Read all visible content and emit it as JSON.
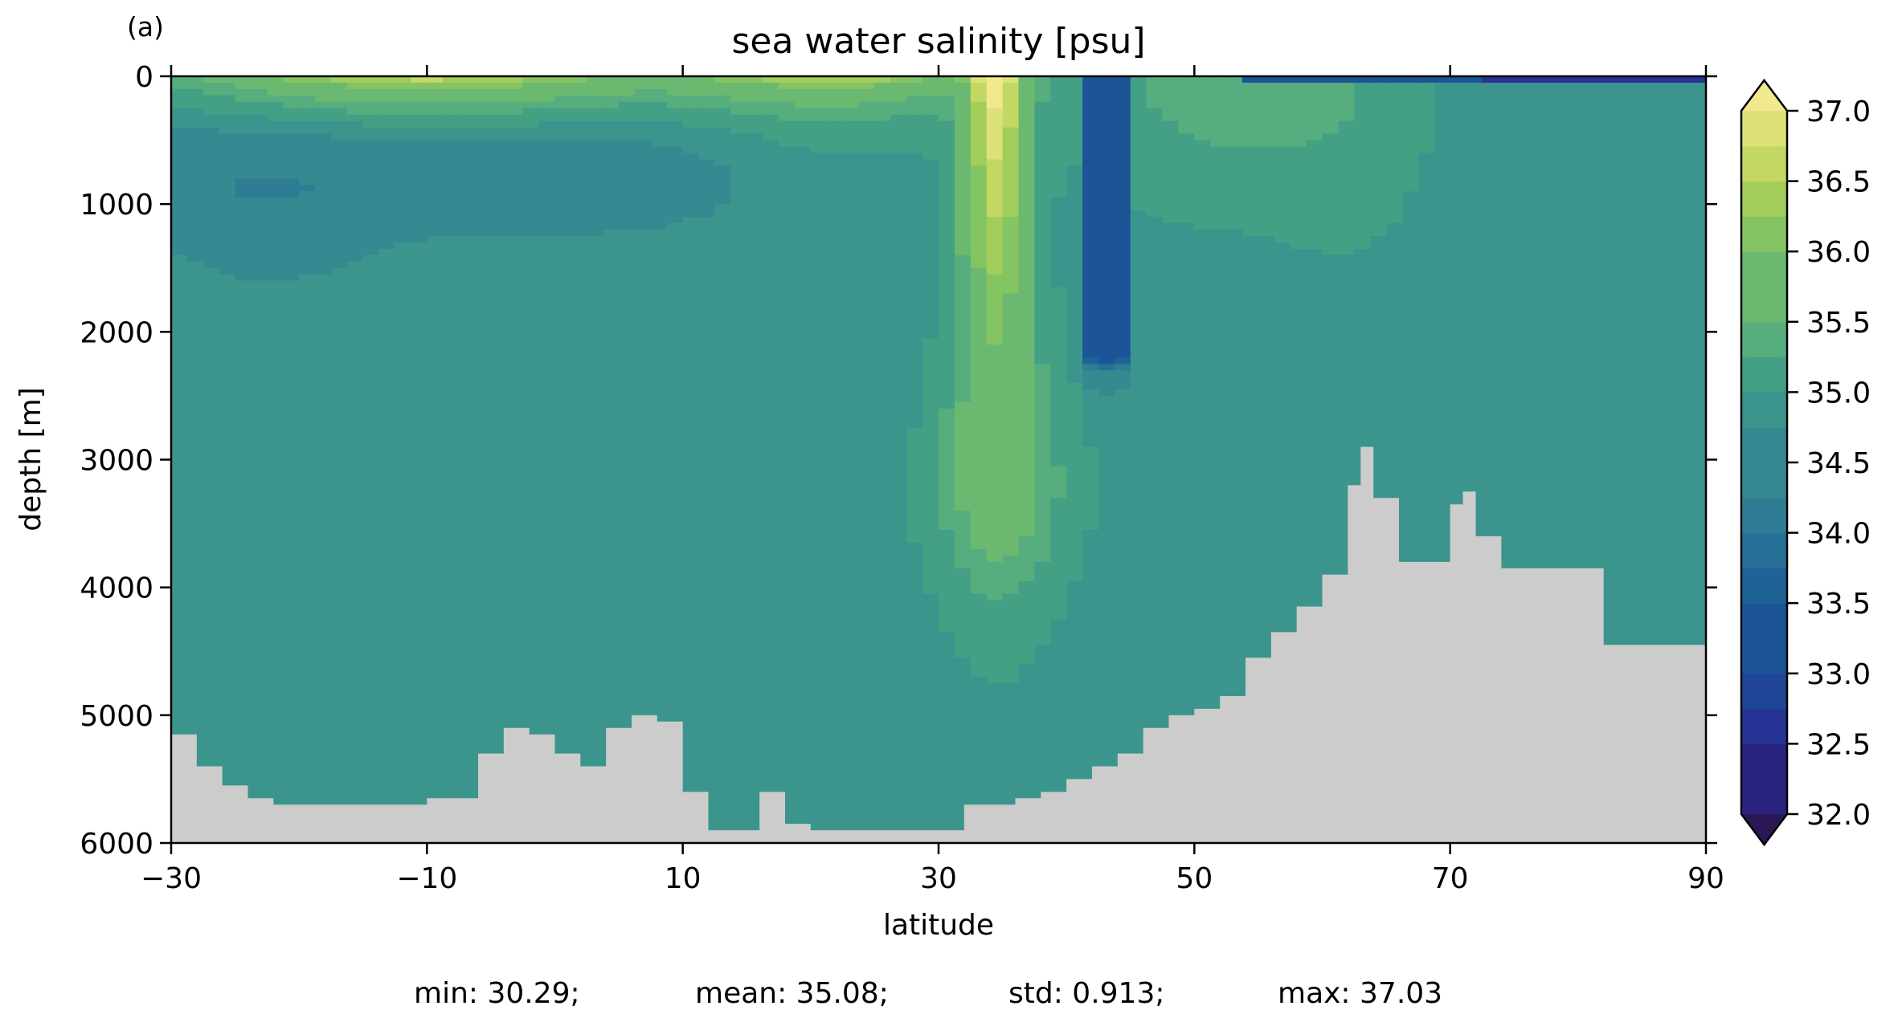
{
  "panel_label": "(a)",
  "stats": {
    "min": "min: 30.29;",
    "mean": "mean: 35.08;",
    "std": "std: 0.913;",
    "max": "max: 37.03"
  },
  "colors": {
    "land": "#cccccc",
    "colormap": [
      "#2a1856",
      "#29237f",
      "#253394",
      "#1f4596",
      "#1b5597",
      "#1f6296",
      "#266f96",
      "#2e7d95",
      "#358a92",
      "#3c958c",
      "#44a085",
      "#56ad7d",
      "#6bb871",
      "#85c462",
      "#a3cd5b",
      "#c3d862",
      "#dde278",
      "#f2e88e"
    ]
  },
  "chart_data": {
    "type": "heatmap",
    "title": "sea water salinity [psu]",
    "xlabel": "latitude",
    "ylabel": "depth [m]",
    "xlim": [
      -30,
      90
    ],
    "ylim": [
      6000,
      0
    ],
    "xticks": [
      -30,
      -10,
      10,
      30,
      50,
      70,
      90
    ],
    "xtick_labels": [
      "−30",
      "−10",
      "10",
      "30",
      "50",
      "70",
      "90"
    ],
    "yticks": [
      0,
      1000,
      2000,
      3000,
      4000,
      5000,
      6000
    ],
    "colorbar": {
      "label": "",
      "vmin": 32.0,
      "vmax": 37.0,
      "step": 0.25,
      "extend": "both",
      "ticks": [
        "32.0",
        "32.5",
        "33.0",
        "33.5",
        "34.0",
        "34.5",
        "35.0",
        "35.5",
        "36.0",
        "36.5",
        "37.0"
      ]
    },
    "ocean_floor_depth": {
      "lat": [
        -30,
        -28,
        -26,
        -24,
        -22,
        -18,
        -14,
        -10,
        -6,
        -4,
        -2,
        0,
        2,
        4,
        6,
        8,
        10,
        12,
        14,
        16,
        18,
        20,
        22,
        24,
        26,
        28,
        30,
        32,
        34,
        36,
        38,
        40,
        42,
        44,
        46,
        48,
        50,
        52,
        54,
        56,
        58,
        60,
        62,
        63,
        64,
        66,
        68,
        70,
        71,
        72,
        74,
        76,
        78,
        80,
        82,
        84,
        86,
        88,
        90
      ],
      "depth": [
        5150,
        5400,
        5550,
        5650,
        5700,
        5700,
        5700,
        5650,
        5300,
        5100,
        5150,
        5300,
        5400,
        5100,
        5000,
        5050,
        5600,
        5900,
        5900,
        5600,
        5850,
        5900,
        5900,
        5900,
        5900,
        5900,
        5900,
        5700,
        5700,
        5650,
        5600,
        5500,
        5400,
        5300,
        5100,
        5000,
        4950,
        4850,
        4550,
        4350,
        4150,
        3900,
        3200,
        2900,
        3300,
        3800,
        3800,
        3350,
        3250,
        3600,
        3850,
        3850,
        3850,
        3850,
        4450,
        4450,
        4450,
        4450,
        4450
      ]
    },
    "salinity_field_description": {
      "surface_max_subtropics": 37.0,
      "intermediate_min": 34.5,
      "deep_value": 35.0,
      "outflow_plume_lat": 36,
      "low_salinity_column_lat": 43,
      "low_salinity_column_value": 33.0,
      "arctic_surface_value": 32.5
    }
  }
}
